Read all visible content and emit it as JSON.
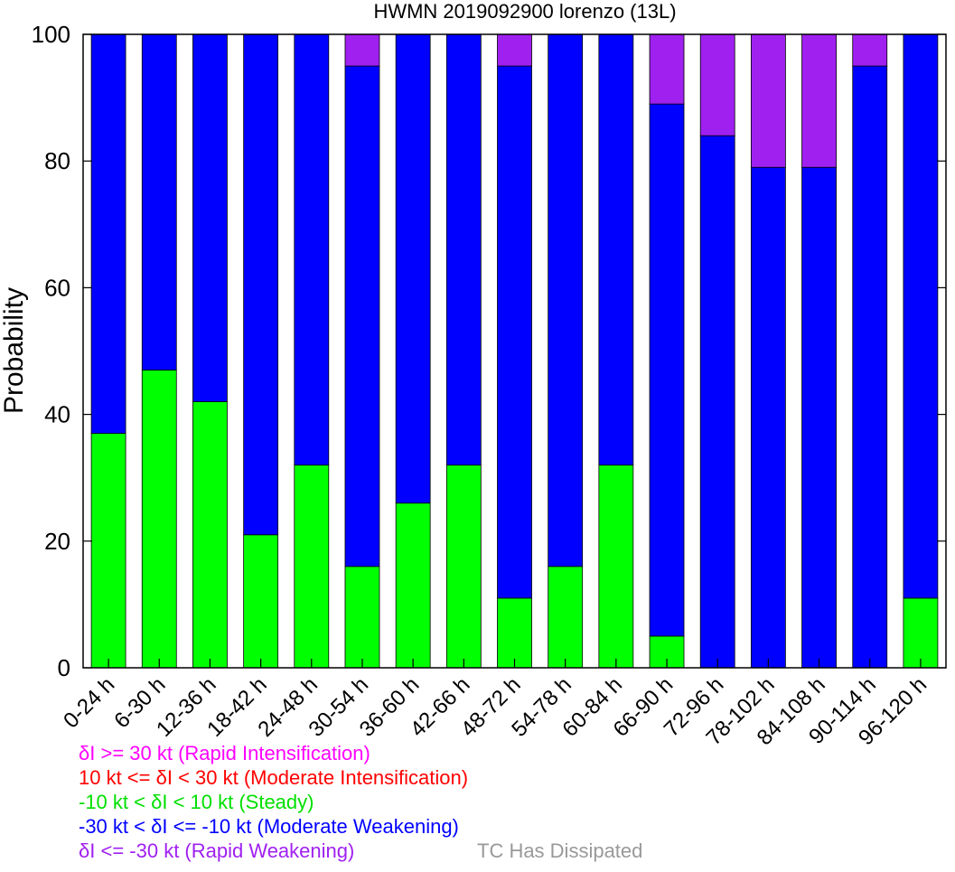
{
  "chart_data": {
    "type": "bar",
    "stacked": true,
    "title": "HWMN 2019092900 lorenzo (13L)",
    "xlabel": "",
    "ylabel": "Probability",
    "ylim": [
      0,
      100
    ],
    "yticks": [
      0,
      20,
      40,
      60,
      80,
      100
    ],
    "categories": [
      "0-24 h",
      "6-30 h",
      "12-36 h",
      "18-42 h",
      "24-48 h",
      "30-54 h",
      "36-60 h",
      "42-66 h",
      "48-72 h",
      "54-78 h",
      "60-84 h",
      "66-90 h",
      "72-96 h",
      "78-102 h",
      "84-108 h",
      "90-114 h",
      "96-120 h"
    ],
    "series": [
      {
        "key": "steady",
        "color": "#00ff00",
        "values": [
          37,
          47,
          42,
          21,
          32,
          16,
          26,
          32,
          11,
          16,
          32,
          5,
          0,
          0,
          0,
          0,
          11
        ]
      },
      {
        "key": "moderate_weakening",
        "color": "#0000ff",
        "values": [
          63,
          53,
          58,
          79,
          68,
          79,
          74,
          68,
          84,
          84,
          68,
          84,
          84,
          79,
          79,
          95,
          89
        ]
      },
      {
        "key": "rapid_weakening",
        "color": "#a020f0",
        "values": [
          0,
          0,
          0,
          0,
          0,
          5,
          0,
          0,
          5,
          0,
          0,
          11,
          16,
          21,
          21,
          5,
          0
        ]
      }
    ],
    "legend": [
      {
        "label": "δI >= 30 kt (Rapid Intensification)",
        "color": "#ff00ff"
      },
      {
        "label": "10 kt <= δI < 30 kt (Moderate Intensification)",
        "color": "#ff0000"
      },
      {
        "label": "-10 kt < δI < 10 kt (Steady)",
        "color": "#00e000"
      },
      {
        "label": "-30 kt < δI <= -10 kt (Moderate Weakening)",
        "color": "#0000ff"
      },
      {
        "label": "δI <= -30 kt (Rapid Weakening)",
        "color": "#a020f0"
      },
      {
        "label": "TC Has Dissipated",
        "color": "#999999"
      }
    ]
  }
}
